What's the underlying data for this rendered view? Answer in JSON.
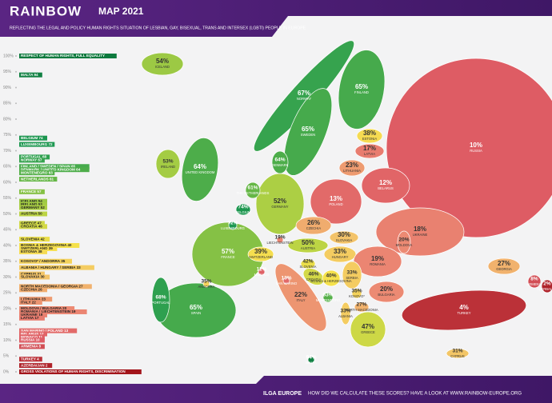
{
  "header": {
    "title": "RAINBOW",
    "title_suffix": "MAP 2021",
    "subtitle": "REFLECTING THE LEGAL AND POLICY HUMAN RIGHTS SITUATION OF LESBIAN, GAY, BISEXUAL, TRANS AND INTERSEX (LGBTI) PEOPLE IN EUROPE"
  },
  "chart_data": {
    "type": "map",
    "categories": [
      "RUSSIA",
      "UKRAINE",
      "TURKEY",
      "NORWAY",
      "SWEDEN",
      "FINLAND",
      "ICELAND",
      "UNITED KINGDOM",
      "IRELAND",
      "FRANCE",
      "SPAIN",
      "PORTUGAL",
      "GERMANY",
      "POLAND",
      "BELARUS",
      "ESTONIA",
      "LATVIA",
      "LITHUANIA",
      "DENMARK",
      "THE NETHERLANDS",
      "BELGIUM",
      "LUXEMBOURG",
      "CZECHIA",
      "SLOVAKIA",
      "AUSTRIA",
      "SWITZERLAND",
      "LIECHTENSTEIN",
      "HUNGARY",
      "ROMANIA",
      "MOLDOVA",
      "SLOVENIA",
      "CROATIA",
      "BOSNIA & HERZEGOVINA",
      "SERBIA",
      "MONTENEGRO",
      "KOSOVO*",
      "ALBANIA",
      "NORTH MACEDONIA",
      "BULGARIA",
      "GREECE",
      "ITALY",
      "SAN MARINO",
      "MONACO",
      "ANDORRA",
      "MALTA",
      "CYPRUS",
      "GEORGIA",
      "ARMENIA",
      "AZERBAIJAN"
    ],
    "values": [
      10,
      18,
      4,
      67,
      65,
      65,
      54,
      64,
      53,
      57,
      65,
      68,
      52,
      13,
      12,
      38,
      17,
      23,
      64,
      61,
      74,
      72,
      26,
      30,
      50,
      39,
      19,
      33,
      19,
      20,
      42,
      46,
      40,
      33,
      63,
      35,
      33,
      27,
      20,
      47,
      22,
      13,
      11,
      35,
      94,
      31,
      27,
      8,
      2
    ],
    "value_labels": [
      "10%",
      "18%",
      "4%",
      "67%",
      "65%",
      "65%",
      "54%",
      "64%",
      "53%",
      "57%",
      "65%",
      "68%",
      "52%",
      "13%",
      "12%",
      "38%",
      "17%",
      "23%",
      "64%",
      "61%",
      "74%",
      "72%",
      "26%",
      "30%",
      "50%",
      "39%",
      "19%",
      "33%",
      "19%",
      "20%",
      "42%",
      "46%",
      "40%",
      "33%",
      "63%",
      "35%",
      "33%",
      "27%",
      "20%",
      "47%",
      "22%",
      "13%",
      "11%",
      "35%",
      "94%",
      "31%",
      "27%",
      "8%",
      "2%"
    ],
    "ylim": [
      0,
      100
    ],
    "yticks": [
      {
        "value": 100,
        "label": "100%"
      },
      {
        "value": 95,
        "label": "95%"
      },
      {
        "value": 90,
        "label": "90%"
      },
      {
        "value": 85,
        "label": "85%"
      },
      {
        "value": 80,
        "label": "80%"
      },
      {
        "value": 75,
        "label": "75%"
      },
      {
        "value": 70,
        "label": "70%"
      },
      {
        "value": 65,
        "label": "65%"
      },
      {
        "value": 60,
        "label": "60%"
      },
      {
        "value": 55,
        "label": "55%"
      },
      {
        "value": 50,
        "label": "50%"
      },
      {
        "value": 45,
        "label": "45%"
      },
      {
        "value": 40,
        "label": "40%"
      },
      {
        "value": 35,
        "label": "35%"
      },
      {
        "value": 30,
        "label": "30%"
      },
      {
        "value": 25,
        "label": "25%"
      },
      {
        "value": 20,
        "label": "20%"
      },
      {
        "value": 15,
        "label": "15%"
      },
      {
        "value": 10,
        "label": "10%"
      },
      {
        "value": 5,
        "label": "5%"
      },
      {
        "value": 0,
        "label": "0%"
      }
    ],
    "legend_entries": [
      {
        "label": "RESPECT OF HUMAN RIGHTS, FULL EQUALITY",
        "value": 100
      },
      {
        "label": "MALTA 94",
        "value": 94
      },
      {
        "label": "BELGIUM 74",
        "value": 74
      },
      {
        "label": "LUXEMBOURG 72",
        "value": 72
      },
      {
        "label": "PORTUGAL 68",
        "value": 68
      },
      {
        "label": "NORWAY 67",
        "value": 67
      },
      {
        "label": "FINLAND / SWEDEN / SPAIN 65",
        "value": 65
      },
      {
        "label": "DENMARK / UNITED KINGDOM 64",
        "value": 64
      },
      {
        "label": "MONTENEGRO 63",
        "value": 63
      },
      {
        "label": "NETHERLANDS 61",
        "value": 61
      },
      {
        "label": "FRANCE 57",
        "value": 57
      },
      {
        "label": "ICELAND 54",
        "value": 54
      },
      {
        "label": "IRELAND 53",
        "value": 53
      },
      {
        "label": "GERMANY 52",
        "value": 52
      },
      {
        "label": "AUSTRIA 50",
        "value": 50
      },
      {
        "label": "GREECE 47",
        "value": 47
      },
      {
        "label": "CROATIA 46",
        "value": 46
      },
      {
        "label": "SLOVENIA 42",
        "value": 42
      },
      {
        "label": "BOSNIA & HERZEGOVINA 40",
        "value": 40
      },
      {
        "label": "SWITZERLAND 39",
        "value": 39
      },
      {
        "label": "ESTONIA 38",
        "value": 38
      },
      {
        "label": "KOSOVO* / ANDORRA 35",
        "value": 35
      },
      {
        "label": "ALBANIA / HUNGARY / SERBIA 33",
        "value": 33
      },
      {
        "label": "CYPRUS 31",
        "value": 31
      },
      {
        "label": "SLOVAKIA 30",
        "value": 30
      },
      {
        "label": "NORTH MACEDONIA / GEORGIA 27",
        "value": 27
      },
      {
        "label": "CZECHIA 26",
        "value": 26
      },
      {
        "label": "LITHUANIA 23",
        "value": 23
      },
      {
        "label": "ITALY 22",
        "value": 22
      },
      {
        "label": "MOLDOVA / BULGARIA 20",
        "value": 20
      },
      {
        "label": "ROMANIA / LIECHTENSTEIN 19",
        "value": 19
      },
      {
        "label": "UKRAINE 18",
        "value": 18
      },
      {
        "label": "LATVIA 17",
        "value": 17
      },
      {
        "label": "SAN MARINO / POLAND 13",
        "value": 13
      },
      {
        "label": "BELARUS 12",
        "value": 12
      },
      {
        "label": "MONACO 11",
        "value": 11
      },
      {
        "label": "RUSSIA 10",
        "value": 10
      },
      {
        "label": "ARMENIA 8",
        "value": 8
      },
      {
        "label": "TURKEY 4",
        "value": 4
      },
      {
        "label": "AZERBAIJAN 2",
        "value": 2
      },
      {
        "label": "GROSS VIOLATIONS OF HUMAN RIGHTS, DISCRIMINATION",
        "value": 0
      }
    ]
  },
  "footer": {
    "organisation": "ILGA EUROPE",
    "note": "HOW DID WE CALCULATE THESE SCORES? HAVE A LOOK AT WWW.RAINBOW-EUROPE.ORG"
  }
}
